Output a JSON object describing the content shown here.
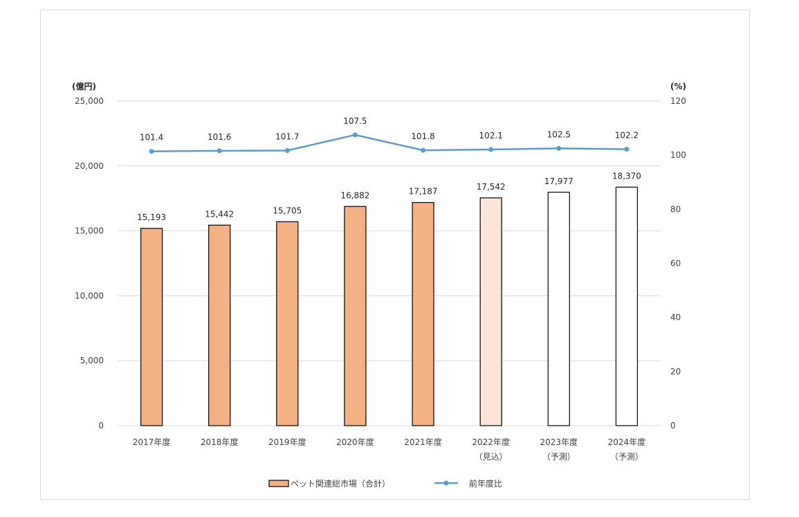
{
  "chart_data": {
    "type": "bar",
    "categories": [
      [
        "2017年度"
      ],
      [
        "2018年度"
      ],
      [
        "2019年度"
      ],
      [
        "2020年度"
      ],
      [
        "2021年度"
      ],
      [
        "2022年度",
        "（見込）"
      ],
      [
        "2023年度",
        "（予測）"
      ],
      [
        "2024年度",
        "（予測）"
      ]
    ],
    "series": [
      {
        "name": "ペット関連総市場（合計）",
        "type": "bar",
        "axis": "left",
        "values": [
          15193,
          15442,
          15705,
          16882,
          17187,
          17542,
          17977,
          18370
        ],
        "labels": [
          "15,193",
          "15,442",
          "15,705",
          "16,882",
          "17,187",
          "17,542",
          "17,977",
          "18,370"
        ],
        "fills": [
          "#f4b183",
          "#f4b183",
          "#f4b183",
          "#f4b183",
          "#f4b183",
          "#fbe5d6",
          "#ffffff",
          "#ffffff"
        ]
      },
      {
        "name": "前年度比",
        "type": "line",
        "axis": "right",
        "values": [
          101.4,
          101.6,
          101.7,
          107.5,
          101.8,
          102.1,
          102.5,
          102.2
        ],
        "labels": [
          "101.4",
          "101.6",
          "101.7",
          "107.5",
          "101.8",
          "102.1",
          "102.5",
          "102.2"
        ],
        "color": "#5b9bd5"
      }
    ],
    "y_left": {
      "unit": "(億円)",
      "ylim": [
        0,
        25000
      ],
      "ticks": [
        0,
        5000,
        10000,
        15000,
        20000,
        25000
      ],
      "tick_labels": [
        "0",
        "5,000",
        "10,000",
        "15,000",
        "20,000",
        "25,000"
      ]
    },
    "y_right": {
      "unit": "(%)",
      "ylim": [
        0,
        120
      ],
      "ticks": [
        0,
        20,
        40,
        60,
        80,
        100,
        120
      ],
      "tick_labels": [
        "0",
        "20",
        "40",
        "60",
        "80",
        "100",
        "120"
      ]
    },
    "grid": true,
    "legend": "bottom",
    "colors": {
      "bar": "#f4b183",
      "bar_light": "#fbe5d6",
      "line": "#5b9bd5",
      "grid": "#d9d9d9"
    }
  }
}
